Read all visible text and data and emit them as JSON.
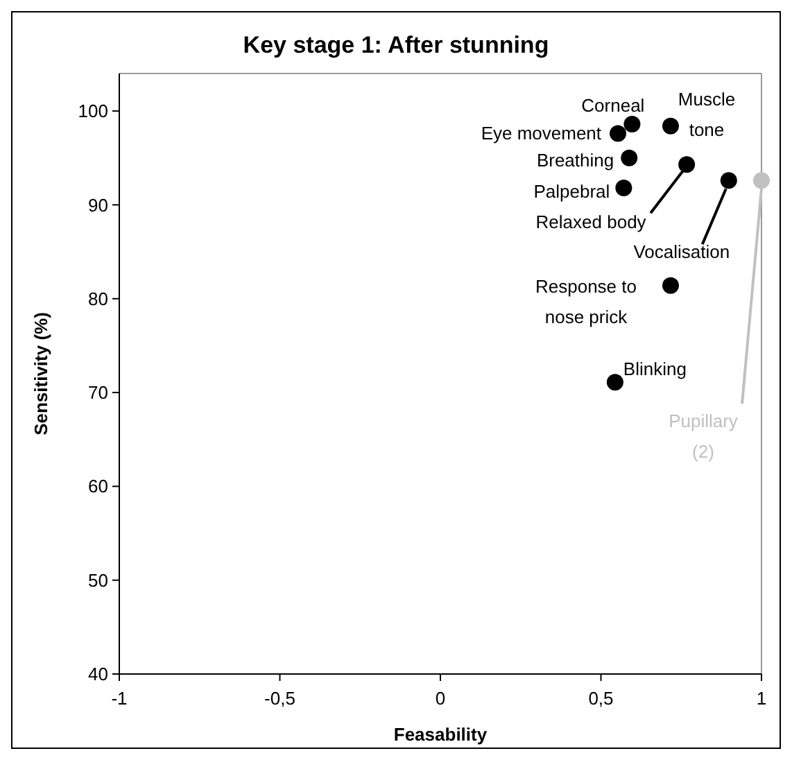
{
  "chart_data": {
    "type": "scatter",
    "title": "Key stage 1: After stunning",
    "xlabel": "Feasability",
    "ylabel": "Sensitivity (%)",
    "xlim": [
      -1,
      1
    ],
    "xticks": [
      -1,
      {
        "value": -0.5,
        "label": "-0,5"
      },
      0,
      {
        "value": 0.5,
        "label": "0,5"
      },
      1
    ],
    "ylim": [
      40,
      104
    ],
    "yticks": [
      40,
      50,
      60,
      70,
      80,
      90,
      100
    ],
    "grid": false,
    "marker": "circle",
    "series": [
      {
        "color": "#000000",
        "x": [
          0.597,
          0.553,
          0.717,
          0.588,
          0.767,
          0.898,
          0.571,
          0.717,
          0.544
        ],
        "values": [
          98.6,
          97.6,
          98.4,
          95.0,
          94.3,
          92.6,
          91.8,
          81.4,
          71.1
        ]
      },
      {
        "color": "#c0c0c0",
        "x": [
          1.0
        ],
        "values": [
          92.6
        ]
      }
    ],
    "annotations": [
      {
        "text": "Corneal",
        "x": 0.597,
        "y": 98.6
      },
      {
        "text": "Eye movement",
        "x": 0.553,
        "y": 97.6
      },
      {
        "text": "Muscle\ntone",
        "x": 0.717,
        "y": 98.4
      },
      {
        "text": "Breathing",
        "x": 0.588,
        "y": 95.0
      },
      {
        "text": "Relaxed body",
        "x": 0.767,
        "y": 94.3
      },
      {
        "text": "Vocalisation",
        "x": 0.898,
        "y": 92.6
      },
      {
        "text": "Palpebral",
        "x": 0.571,
        "y": 91.8
      },
      {
        "text": "Response to\nnose prick",
        "x": 0.717,
        "y": 81.4
      },
      {
        "text": "Blinking",
        "x": 0.544,
        "y": 71.1
      },
      {
        "text": "Pupillary\n(2)",
        "x": 1.0,
        "y": 92.6
      }
    ]
  }
}
